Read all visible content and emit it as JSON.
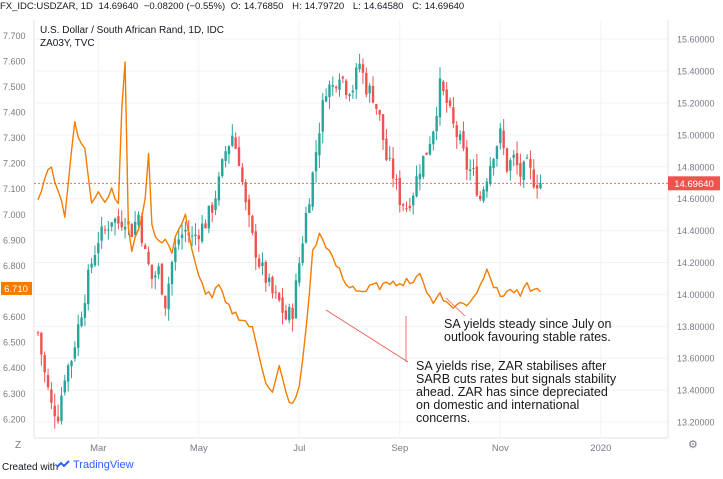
{
  "header": {
    "symbol": "FX_IDC:USDZAR, 1D",
    "last": "14.69640",
    "change": "−0.08200 (−0.55%)",
    "open_label": "O:",
    "open": "14.76850",
    "high_label": "H:",
    "high": "14.79720",
    "low_label": "L:",
    "low": "14.64580",
    "close_label": "C:",
    "close": "14.69640"
  },
  "legend": {
    "title": "U.S. Dollar / South African Rand, 1D, IDC",
    "secondary": "ZA03Y, TVC"
  },
  "footer": {
    "created_with": "Created with",
    "brand": "TradingView"
  },
  "corner": {
    "left": "Z",
    "right": "⚙"
  },
  "colors": {
    "up": "#26a69a",
    "down": "#ef5350",
    "yield_line": "#f57c00",
    "price_tag": "#ef5350",
    "yield_tag": "#f57c00",
    "annotation": "#ef5350"
  },
  "chart_data": {
    "type": "candlestick+line",
    "x_tick_labels": [
      "Mar",
      "May",
      "Jul",
      "Sep",
      "Nov",
      "2020"
    ],
    "right_axis": {
      "series": "USDZAR",
      "range": [
        13.1,
        15.72
      ],
      "ticks": [
        "15.60000",
        "15.40000",
        "15.20000",
        "15.00000",
        "14.80000",
        "14.60000",
        "14.40000",
        "14.20000",
        "14.00000",
        "13.80000",
        "13.60000",
        "13.40000",
        "13.20000"
      ],
      "current_label": "14.69640",
      "current_value": 14.6964
    },
    "left_axis": {
      "series": "ZA03Y",
      "range": [
        6.125,
        7.76
      ],
      "ticks": [
        "7.700",
        "7.600",
        "7.500",
        "7.400",
        "7.300",
        "7.200",
        "7.100",
        "7.000",
        "6.900",
        "6.800",
        "6.700",
        "6.600",
        "6.500",
        "6.400",
        "6.300",
        "6.200"
      ],
      "current_label": "6.710",
      "current_value": 6.71
    },
    "usdzar_close_path": [
      [
        0,
        13.76
      ],
      [
        2,
        13.5
      ],
      [
        4,
        13.3
      ],
      [
        6,
        13.25
      ],
      [
        8,
        13.5
      ],
      [
        10,
        13.6
      ],
      [
        12,
        13.8
      ],
      [
        14,
        14.0
      ],
      [
        16,
        14.2
      ],
      [
        18,
        14.35
      ],
      [
        20,
        14.4
      ],
      [
        22,
        14.48
      ],
      [
        24,
        14.45
      ],
      [
        26,
        14.48
      ],
      [
        28,
        14.4
      ],
      [
        30,
        14.5
      ],
      [
        32,
        14.25
      ],
      [
        34,
        14.1
      ],
      [
        36,
        14.15
      ],
      [
        38,
        13.95
      ],
      [
        40,
        14.2
      ],
      [
        42,
        14.35
      ],
      [
        44,
        14.4
      ],
      [
        46,
        14.35
      ],
      [
        48,
        14.4
      ],
      [
        50,
        14.45
      ],
      [
        52,
        14.55
      ],
      [
        54,
        14.7
      ],
      [
        56,
        14.9
      ],
      [
        58,
        15.0
      ],
      [
        60,
        14.85
      ],
      [
        62,
        14.55
      ],
      [
        64,
        14.35
      ],
      [
        66,
        14.2
      ],
      [
        68,
        14.1
      ],
      [
        70,
        14.0
      ],
      [
        72,
        13.95
      ],
      [
        74,
        13.85
      ],
      [
        76,
        13.9
      ],
      [
        78,
        14.2
      ],
      [
        80,
        14.5
      ],
      [
        82,
        14.75
      ],
      [
        84,
        15.05
      ],
      [
        86,
        15.3
      ],
      [
        88,
        15.3
      ],
      [
        90,
        15.4
      ],
      [
        92,
        15.3
      ],
      [
        94,
        15.3
      ],
      [
        96,
        15.45
      ],
      [
        98,
        15.3
      ],
      [
        100,
        15.25
      ],
      [
        102,
        15.1
      ],
      [
        104,
        14.85
      ],
      [
        106,
        14.75
      ],
      [
        108,
        14.6
      ],
      [
        110,
        14.55
      ],
      [
        112,
        14.65
      ],
      [
        114,
        14.8
      ],
      [
        116,
        14.9
      ],
      [
        118,
        15.05
      ],
      [
        120,
        15.3
      ],
      [
        122,
        15.2
      ],
      [
        124,
        15.05
      ],
      [
        126,
        14.95
      ],
      [
        128,
        14.8
      ],
      [
        130,
        14.75
      ],
      [
        132,
        14.6
      ],
      [
        134,
        14.75
      ],
      [
        136,
        14.9
      ],
      [
        138,
        15.0
      ],
      [
        140,
        14.8
      ],
      [
        142,
        14.85
      ],
      [
        144,
        14.75
      ],
      [
        146,
        14.8
      ],
      [
        148,
        14.72
      ],
      [
        150,
        14.7
      ]
    ],
    "za03y_path": [
      [
        0,
        7.05
      ],
      [
        2,
        7.15
      ],
      [
        4,
        7.18
      ],
      [
        6,
        7.1
      ],
      [
        8,
        7.0
      ],
      [
        10,
        7.25
      ],
      [
        11,
        7.35
      ],
      [
        12,
        7.3
      ],
      [
        14,
        7.25
      ],
      [
        16,
        7.05
      ],
      [
        18,
        7.1
      ],
      [
        20,
        7.05
      ],
      [
        22,
        7.1
      ],
      [
        24,
        7.05
      ],
      [
        25,
        7.4
      ],
      [
        26,
        7.6
      ],
      [
        27,
        6.95
      ],
      [
        28,
        6.85
      ],
      [
        30,
        6.95
      ],
      [
        32,
        7.05
      ],
      [
        33,
        7.25
      ],
      [
        34,
        6.95
      ],
      [
        36,
        6.9
      ],
      [
        38,
        6.9
      ],
      [
        40,
        6.85
      ],
      [
        42,
        6.95
      ],
      [
        44,
        7.0
      ],
      [
        46,
        6.85
      ],
      [
        48,
        6.75
      ],
      [
        50,
        6.7
      ],
      [
        52,
        6.68
      ],
      [
        54,
        6.72
      ],
      [
        56,
        6.65
      ],
      [
        58,
        6.62
      ],
      [
        60,
        6.6
      ],
      [
        62,
        6.58
      ],
      [
        64,
        6.55
      ],
      [
        66,
        6.45
      ],
      [
        68,
        6.35
      ],
      [
        70,
        6.3
      ],
      [
        72,
        6.4
      ],
      [
        74,
        6.3
      ],
      [
        76,
        6.25
      ],
      [
        78,
        6.32
      ],
      [
        80,
        6.55
      ],
      [
        82,
        6.85
      ],
      [
        84,
        6.92
      ],
      [
        86,
        6.88
      ],
      [
        88,
        6.82
      ],
      [
        90,
        6.78
      ],
      [
        92,
        6.72
      ],
      [
        94,
        6.72
      ],
      [
        96,
        6.7
      ],
      [
        98,
        6.7
      ],
      [
        100,
        6.72
      ],
      [
        102,
        6.72
      ],
      [
        104,
        6.72
      ],
      [
        106,
        6.75
      ],
      [
        108,
        6.72
      ],
      [
        110,
        6.75
      ],
      [
        112,
        6.72
      ],
      [
        114,
        6.78
      ],
      [
        116,
        6.7
      ],
      [
        118,
        6.65
      ],
      [
        120,
        6.7
      ],
      [
        122,
        6.65
      ],
      [
        124,
        6.64
      ],
      [
        126,
        6.65
      ],
      [
        128,
        6.65
      ],
      [
        130,
        6.68
      ],
      [
        132,
        6.72
      ],
      [
        134,
        6.8
      ],
      [
        136,
        6.72
      ],
      [
        138,
        6.68
      ],
      [
        140,
        6.7
      ],
      [
        142,
        6.7
      ],
      [
        144,
        6.68
      ],
      [
        146,
        6.72
      ],
      [
        148,
        6.7
      ],
      [
        150,
        6.71
      ]
    ],
    "annotations": [
      "SA yields steady since July on outlook favouring stable rates.",
      "SA yields rise, ZAR stabilises after SARB cuts rates but signals stability ahead. ZAR has since depreciated on domestic and international concerns."
    ]
  }
}
